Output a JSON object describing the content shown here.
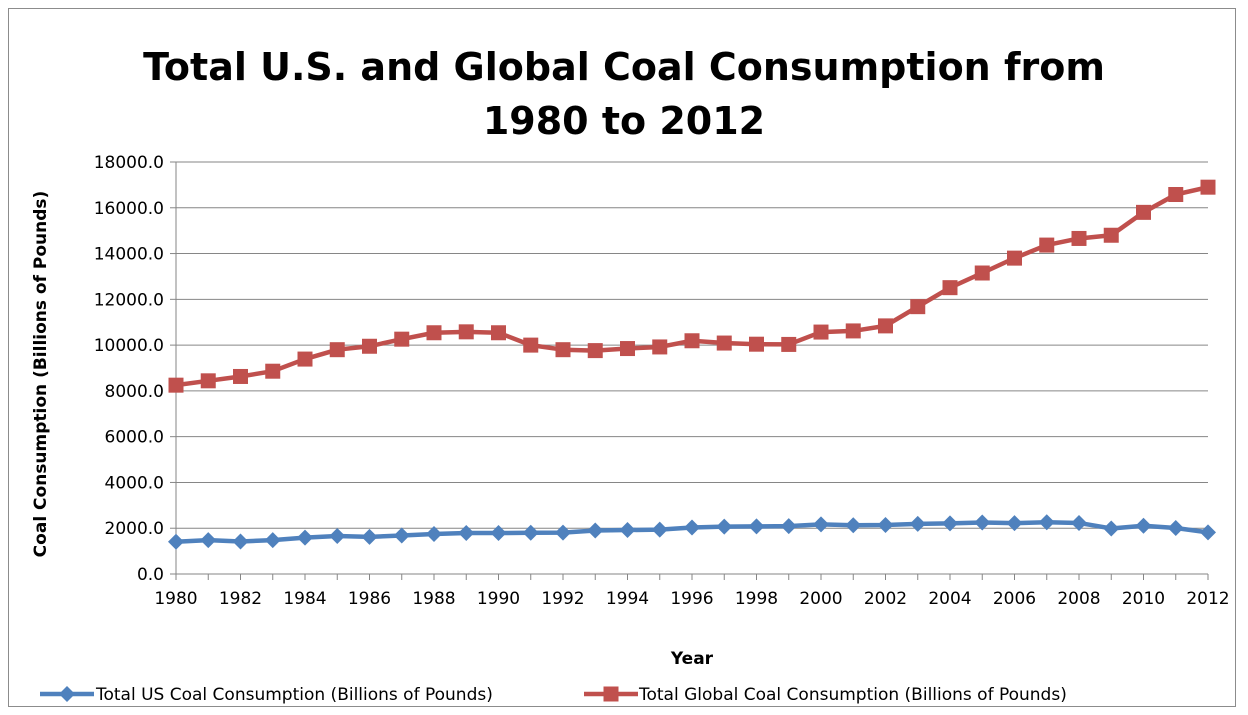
{
  "chart_data": {
    "type": "line",
    "title": "Total U.S. and Global Coal Consumption from 1980 to 2012",
    "title_lines": [
      "Total U.S. and Global Coal Consumption from",
      "1980 to 2012"
    ],
    "xlabel": "Year",
    "ylabel": "Coal Consumption (Billions of Pounds)",
    "ylim": [
      0,
      18000
    ],
    "y_ticks": [
      "0.0",
      "2000.0",
      "4000.0",
      "6000.0",
      "8000.0",
      "10000.0",
      "12000.0",
      "14000.0",
      "16000.0",
      "18000.0"
    ],
    "x_tick_labels": [
      "1980",
      "1982",
      "1984",
      "1986",
      "1988",
      "1990",
      "1992",
      "1994",
      "1996",
      "1998",
      "2000",
      "2002",
      "2004",
      "2006",
      "2008",
      "2010",
      "2012"
    ],
    "grid": "horizontal",
    "legend_position": "bottom",
    "x": [
      1980,
      1981,
      1982,
      1983,
      1984,
      1985,
      1986,
      1987,
      1988,
      1989,
      1990,
      1991,
      1992,
      1993,
      1994,
      1995,
      1996,
      1997,
      1998,
      1999,
      2000,
      2001,
      2002,
      2003,
      2004,
      2005,
      2006,
      2007,
      2008,
      2009,
      2010,
      2011,
      2012
    ],
    "series": [
      {
        "name": "Total US Coal Consumption (Billions of Pounds)",
        "color": "#4f81bd",
        "marker": "diamond",
        "values": [
          1410,
          1480,
          1420,
          1480,
          1590,
          1660,
          1620,
          1680,
          1750,
          1790,
          1790,
          1800,
          1810,
          1900,
          1920,
          1940,
          2030,
          2070,
          2080,
          2090,
          2170,
          2130,
          2140,
          2190,
          2210,
          2250,
          2220,
          2260,
          2230,
          1990,
          2110,
          2010,
          1820
        ]
      },
      {
        "name": "Total Global Coal Consumption (Billions of Pounds)",
        "color": "#c0504d",
        "marker": "square",
        "values": [
          8250,
          8440,
          8630,
          8860,
          9390,
          9800,
          9950,
          10260,
          10540,
          10580,
          10540,
          10000,
          9800,
          9760,
          9850,
          9920,
          10190,
          10090,
          10040,
          10030,
          10570,
          10620,
          10840,
          11680,
          12510,
          13150,
          13800,
          14370,
          14660,
          14800,
          15800,
          16580,
          16900
        ]
      }
    ]
  }
}
